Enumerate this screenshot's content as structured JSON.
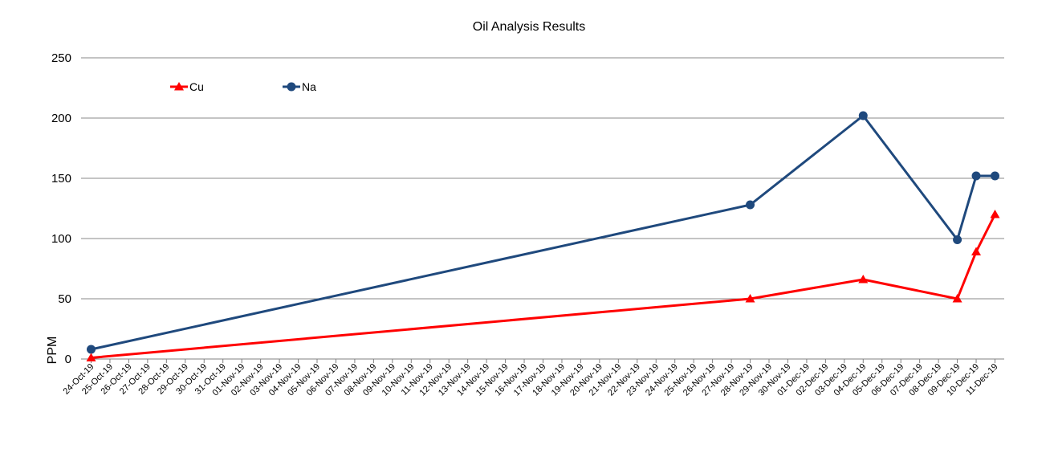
{
  "chart_data": {
    "type": "line",
    "title": "Oil Analysis Results",
    "xlabel": "",
    "ylabel": "PPM",
    "ylim": [
      0,
      250
    ],
    "yticks": [
      0,
      50,
      100,
      150,
      200,
      250
    ],
    "grid": true,
    "legend_position": "top-left",
    "x_tick_labels": [
      "24-Oct-19",
      "25-Oct-19",
      "26-Oct-19",
      "27-Oct-19",
      "28-Oct-19",
      "29-Oct-19",
      "30-Oct-19",
      "31-Oct-19",
      "01-Nov-19",
      "02-Nov-19",
      "03-Nov-19",
      "04-Nov-19",
      "05-Nov-19",
      "06-Nov-19",
      "07-Nov-19",
      "08-Nov-19",
      "09-Nov-19",
      "10-Nov-19",
      "11-Nov-19",
      "12-Nov-19",
      "13-Nov-19",
      "14-Nov-19",
      "15-Nov-19",
      "16-Nov-19",
      "17-Nov-19",
      "18-Nov-19",
      "19-Nov-19",
      "20-Nov-19",
      "21-Nov-19",
      "22-Nov-19",
      "23-Nov-19",
      "24-Nov-19",
      "25-Nov-19",
      "26-Nov-19",
      "27-Nov-19",
      "28-Nov-19",
      "29-Nov-19",
      "30-Nov-19",
      "01-Dec-19",
      "02-Dec-19",
      "03-Dec-19",
      "04-Dec-19",
      "05-Dec-19",
      "06-Dec-19",
      "07-Dec-19",
      "08-Dec-19",
      "09-Dec-19",
      "10-Dec-19",
      "11-Dec-19"
    ],
    "series": [
      {
        "name": "Cu",
        "color": "#ff0000",
        "marker": "triangle",
        "x": [
          "24-Oct-19",
          "28-Nov-19",
          "04-Dec-19",
          "09-Dec-19",
          "10-Dec-19",
          "11-Dec-19"
        ],
        "values": [
          1,
          50,
          66,
          50,
          89,
          120
        ]
      },
      {
        "name": "Na",
        "color": "#1f497d",
        "marker": "circle",
        "x": [
          "24-Oct-19",
          "28-Nov-19",
          "04-Dec-19",
          "09-Dec-19",
          "10-Dec-19",
          "11-Dec-19"
        ],
        "values": [
          8,
          128,
          202,
          99,
          152,
          152
        ]
      }
    ]
  }
}
